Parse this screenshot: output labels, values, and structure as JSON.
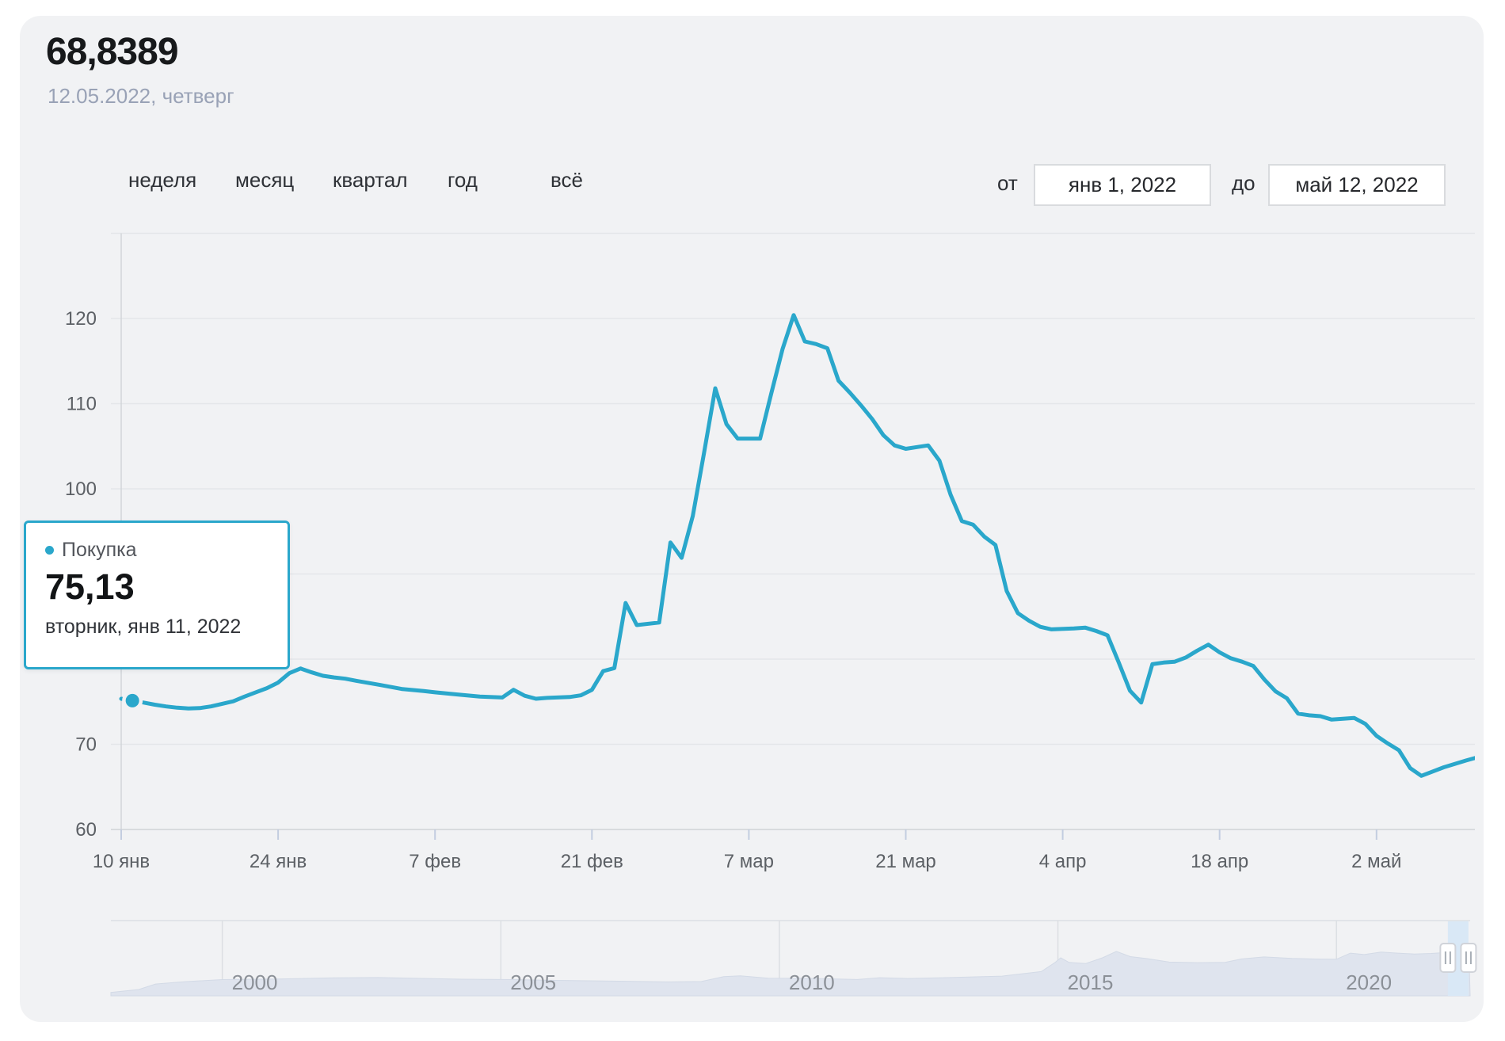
{
  "header": {
    "rate_value": "68,8389",
    "rate_date": "12.05.2022, четверг"
  },
  "controls": {
    "periods": [
      {
        "label": "неделя"
      },
      {
        "label": "месяц"
      },
      {
        "label": "квартал"
      },
      {
        "label": "год"
      },
      {
        "label": "всё"
      }
    ],
    "from_label": "от",
    "from_value": "янв 1, 2022",
    "to_label": "до",
    "to_value": "май 12, 2022"
  },
  "tooltip": {
    "series_label": "Покупка",
    "value": "75,13",
    "date": "вторник, янв 11, 2022"
  },
  "colors": {
    "accent": "#2aa7cb",
    "panel_bg": "#f1f2f4",
    "grid": "#e4e6e9",
    "axis": "#d2d5d9",
    "tick": "#c3cde0",
    "axis_label": "#5c6065",
    "nav_area": "#dfe4ee",
    "nav_area_edge": "#d3dae6",
    "nav_selection": "#d9e8f6",
    "nav_year_label": "#8b9097",
    "nav_separator": "#dcdfe3",
    "handle_border": "#d0d3d9",
    "handle_bars": "#a7adb5"
  },
  "chart_data": {
    "type": "line",
    "series": [
      {
        "name": "Покупка",
        "color": "#2aa7cb",
        "x_unit": "days since 10 янв 2022",
        "points": [
          [
            0,
            75.35
          ],
          [
            1,
            75.13
          ],
          [
            2,
            74.9
          ],
          [
            3,
            74.65
          ],
          [
            4,
            74.45
          ],
          [
            5,
            74.3
          ],
          [
            6,
            74.2
          ],
          [
            7,
            74.25
          ],
          [
            8,
            74.45
          ],
          [
            9,
            74.75
          ],
          [
            10,
            75.05
          ],
          [
            11,
            75.6
          ],
          [
            12,
            76.1
          ],
          [
            13,
            76.6
          ],
          [
            14,
            77.25
          ],
          [
            15,
            78.35
          ],
          [
            16,
            78.9
          ],
          [
            17,
            78.45
          ],
          [
            18,
            78.05
          ],
          [
            19,
            77.85
          ],
          [
            20,
            77.7
          ],
          [
            21,
            77.45
          ],
          [
            23,
            77.0
          ],
          [
            25,
            76.5
          ],
          [
            27,
            76.25
          ],
          [
            28,
            76.1
          ],
          [
            30,
            75.85
          ],
          [
            32,
            75.6
          ],
          [
            34,
            75.5
          ],
          [
            35,
            76.4
          ],
          [
            36,
            75.7
          ],
          [
            37,
            75.35
          ],
          [
            38,
            75.45
          ],
          [
            40,
            75.55
          ],
          [
            41,
            75.75
          ],
          [
            42,
            76.4
          ],
          [
            43,
            78.6
          ],
          [
            44,
            78.95
          ],
          [
            45,
            86.6
          ],
          [
            46,
            84.0
          ],
          [
            48,
            84.3
          ],
          [
            49,
            93.7
          ],
          [
            50,
            91.9
          ],
          [
            51,
            96.8
          ],
          [
            52,
            104.2
          ],
          [
            53,
            111.8
          ],
          [
            54,
            107.6
          ],
          [
            55,
            105.9
          ],
          [
            57,
            105.9
          ],
          [
            58,
            111.2
          ],
          [
            59,
            116.4
          ],
          [
            60,
            120.4
          ],
          [
            61,
            117.3
          ],
          [
            62,
            117.0
          ],
          [
            63,
            116.5
          ],
          [
            64,
            112.7
          ],
          [
            65,
            111.3
          ],
          [
            66,
            109.8
          ],
          [
            67,
            108.2
          ],
          [
            68,
            106.3
          ],
          [
            69,
            105.1
          ],
          [
            70,
            104.7
          ],
          [
            71,
            104.9
          ],
          [
            72,
            105.1
          ],
          [
            73,
            103.3
          ],
          [
            74,
            99.3
          ],
          [
            75,
            96.2
          ],
          [
            76,
            95.8
          ],
          [
            77,
            94.4
          ],
          [
            78,
            93.4
          ],
          [
            79,
            88.0
          ],
          [
            80,
            85.4
          ],
          [
            81,
            84.5
          ],
          [
            82,
            83.8
          ],
          [
            83,
            83.5
          ],
          [
            85,
            83.6
          ],
          [
            86,
            83.7
          ],
          [
            87,
            83.3
          ],
          [
            88,
            82.8
          ],
          [
            89,
            79.6
          ],
          [
            90,
            76.3
          ],
          [
            91,
            74.9
          ],
          [
            92,
            79.4
          ],
          [
            93,
            79.6
          ],
          [
            94,
            79.7
          ],
          [
            95,
            80.2
          ],
          [
            96,
            81.0
          ],
          [
            97,
            81.7
          ],
          [
            98,
            80.8
          ],
          [
            99,
            80.1
          ],
          [
            100,
            79.7
          ],
          [
            101,
            79.2
          ],
          [
            102,
            77.6
          ],
          [
            103,
            76.2
          ],
          [
            104,
            75.4
          ],
          [
            105,
            73.6
          ],
          [
            106,
            73.4
          ],
          [
            107,
            73.3
          ],
          [
            108,
            72.9
          ],
          [
            109,
            73.0
          ],
          [
            110,
            73.1
          ],
          [
            111,
            72.4
          ],
          [
            112,
            71.0
          ],
          [
            113,
            70.1
          ],
          [
            114,
            69.3
          ],
          [
            115,
            67.2
          ],
          [
            116,
            66.3
          ],
          [
            117,
            66.8
          ],
          [
            118,
            67.3
          ],
          [
            120,
            68.1
          ],
          [
            122,
            68.84
          ]
        ]
      }
    ],
    "marked_point": {
      "day": 1,
      "value": 75.13,
      "date": "вторник, янв 11, 2022"
    },
    "x_ticks": [
      {
        "label": "10 янв",
        "day": 0
      },
      {
        "label": "24 янв",
        "day": 14
      },
      {
        "label": "7 фев",
        "day": 28
      },
      {
        "label": "21 фев",
        "day": 42
      },
      {
        "label": "7 мар",
        "day": 56
      },
      {
        "label": "21 мар",
        "day": 70
      },
      {
        "label": "4 апр",
        "day": 84
      },
      {
        "label": "18 апр",
        "day": 98
      },
      {
        "label": "2 май",
        "day": 112
      }
    ],
    "y_tick_labels": [
      60,
      70,
      80,
      90,
      100,
      110,
      120
    ],
    "y_gridlines": [
      60,
      70,
      80,
      90,
      100,
      110,
      120,
      130
    ],
    "ylim": [
      60,
      130
    ],
    "xlim_days": [
      0,
      122
    ],
    "grid": "horizontal",
    "legend_position": "tooltip"
  },
  "navigator": {
    "year_labels": [
      2000,
      2005,
      2010,
      2015,
      2020
    ],
    "xlim_years": [
      1998,
      2022.4
    ],
    "ylim": [
      0,
      125
    ],
    "selection": {
      "from_year": 2022.0,
      "to_year": 2022.37
    },
    "profile": [
      [
        1998,
        5.9
      ],
      [
        1998.5,
        11
      ],
      [
        1998.8,
        20.5
      ],
      [
        1999.3,
        24.5
      ],
      [
        2000,
        28.1
      ],
      [
        2001,
        29.2
      ],
      [
        2002,
        31.2
      ],
      [
        2002.8,
        31.7
      ],
      [
        2003.5,
        30.3
      ],
      [
        2004.3,
        28.9
      ],
      [
        2005.2,
        28.2
      ],
      [
        2006,
        26.8
      ],
      [
        2007,
        25.5
      ],
      [
        2008,
        24.2
      ],
      [
        2008.6,
        24.9
      ],
      [
        2009,
        33.2
      ],
      [
        2009.3,
        34.6
      ],
      [
        2009.8,
        30.7
      ],
      [
        2010.5,
        30.3
      ],
      [
        2011.4,
        28.3
      ],
      [
        2011.8,
        31.5
      ],
      [
        2012.3,
        30.1
      ],
      [
        2013,
        31.6
      ],
      [
        2014,
        34.2
      ],
      [
        2014.7,
        42
      ],
      [
        2014.95,
        58
      ],
      [
        2015.05,
        66
      ],
      [
        2015.2,
        58
      ],
      [
        2015.5,
        56
      ],
      [
        2015.8,
        66
      ],
      [
        2016.05,
        77
      ],
      [
        2016.3,
        68
      ],
      [
        2016.6,
        64.5
      ],
      [
        2017,
        58.5
      ],
      [
        2017.5,
        57.5
      ],
      [
        2018,
        58
      ],
      [
        2018.3,
        64
      ],
      [
        2018.7,
        67.5
      ],
      [
        2019.2,
        65
      ],
      [
        2019.7,
        63.8
      ],
      [
        2020,
        63.5
      ],
      [
        2020.25,
        74
      ],
      [
        2020.5,
        71.5
      ],
      [
        2020.8,
        76
      ],
      [
        2021.1,
        74
      ],
      [
        2021.4,
        72.5
      ],
      [
        2021.7,
        73.5
      ],
      [
        2021.95,
        75
      ],
      [
        2022.05,
        78
      ],
      [
        2022.15,
        98
      ],
      [
        2022.2,
        118
      ],
      [
        2022.27,
        96
      ],
      [
        2022.33,
        77
      ],
      [
        2022.38,
        68.8
      ]
    ]
  }
}
